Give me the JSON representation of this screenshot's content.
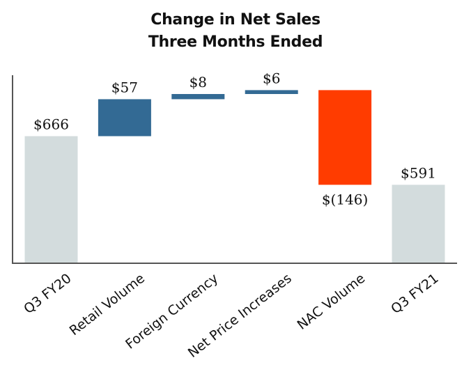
{
  "chart_data": {
    "type": "waterfall",
    "title": "Change in Net Sales",
    "subtitle": "Three Months Ended",
    "categories": [
      "Q3 FY20",
      "Retail Volume",
      "Foreign Currency",
      "Net Price Increases",
      "NAC Volume",
      "Q3 FY21"
    ],
    "values": [
      666,
      57,
      8,
      6,
      -146,
      591
    ],
    "kinds": [
      "total",
      "delta",
      "delta",
      "delta",
      "delta",
      "total"
    ],
    "value_labels": [
      "$666",
      "$57",
      "$8",
      "$6",
      "$(146)",
      "$591"
    ],
    "ylim": [
      470,
      760
    ],
    "grid": false,
    "colors": {
      "total": "#d3dcdd",
      "increase": "#336a94",
      "decrease": "#ff3c00",
      "axis": "#555555"
    }
  }
}
